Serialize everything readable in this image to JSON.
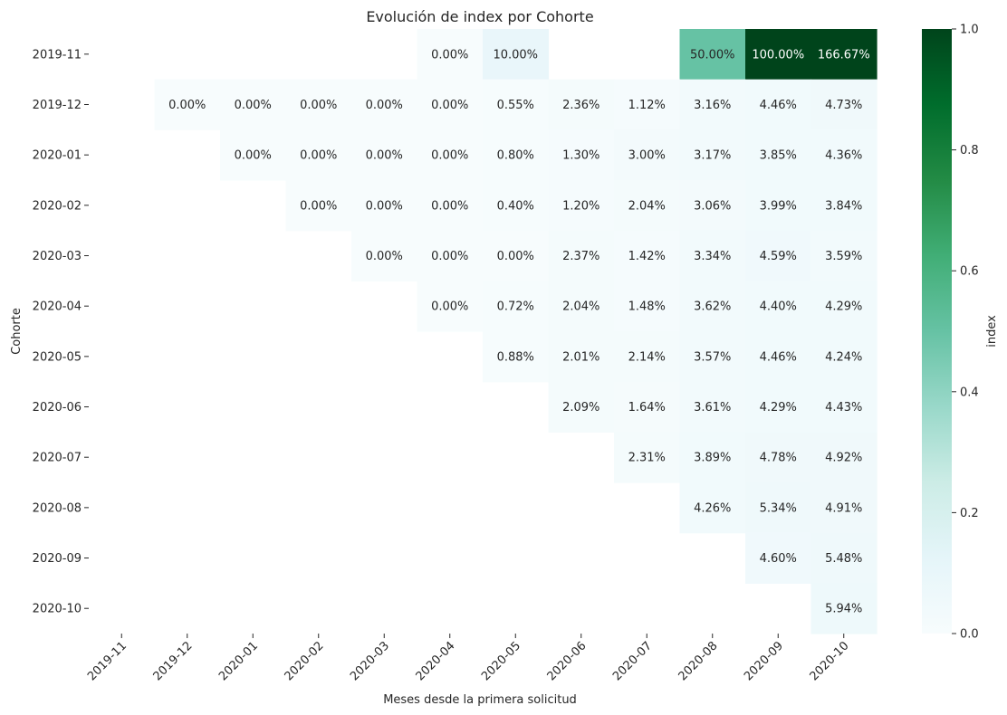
{
  "chart_data": {
    "type": "heatmap",
    "title": "Evolución de index por Cohorte",
    "xlabel": "Meses desde la primera solicitud",
    "ylabel": "Cohorte",
    "colorbar_label": "index",
    "colorbar_range": [
      0.0,
      1.0
    ],
    "colorbar_ticks": [
      "0.0",
      "0.2",
      "0.4",
      "0.6",
      "0.8",
      "1.0"
    ],
    "colormap": "BuGn",
    "x_categories": [
      "2019-11",
      "2019-12",
      "2020-01",
      "2020-02",
      "2020-03",
      "2020-04",
      "2020-05",
      "2020-06",
      "2020-07",
      "2020-08",
      "2020-09",
      "2020-10"
    ],
    "y_categories": [
      "2019-11",
      "2019-12",
      "2020-01",
      "2020-02",
      "2020-03",
      "2020-04",
      "2020-05",
      "2020-06",
      "2020-07",
      "2020-08",
      "2020-09",
      "2020-10"
    ],
    "values": [
      [
        null,
        null,
        null,
        null,
        null,
        0.0,
        0.1,
        null,
        null,
        0.5,
        1.0,
        1.6667
      ],
      [
        null,
        0.0,
        0.0,
        0.0,
        0.0,
        0.0,
        0.0055,
        0.0236,
        0.0112,
        0.0316,
        0.0446,
        0.0473
      ],
      [
        null,
        null,
        0.0,
        0.0,
        0.0,
        0.0,
        0.008,
        0.013,
        0.03,
        0.0317,
        0.0385,
        0.0436
      ],
      [
        null,
        null,
        null,
        0.0,
        0.0,
        0.0,
        0.004,
        0.012,
        0.0204,
        0.0306,
        0.0399,
        0.0384
      ],
      [
        null,
        null,
        null,
        null,
        0.0,
        0.0,
        0.0,
        0.0237,
        0.0142,
        0.0334,
        0.0459,
        0.0359
      ],
      [
        null,
        null,
        null,
        null,
        null,
        0.0,
        0.0072,
        0.0204,
        0.0148,
        0.0362,
        0.044,
        0.0429
      ],
      [
        null,
        null,
        null,
        null,
        null,
        null,
        0.0088,
        0.0201,
        0.0214,
        0.0357,
        0.0446,
        0.0424
      ],
      [
        null,
        null,
        null,
        null,
        null,
        null,
        null,
        0.0209,
        0.0164,
        0.0361,
        0.0429,
        0.0443
      ],
      [
        null,
        null,
        null,
        null,
        null,
        null,
        null,
        null,
        0.0231,
        0.0389,
        0.0478,
        0.0492
      ],
      [
        null,
        null,
        null,
        null,
        null,
        null,
        null,
        null,
        null,
        0.0426,
        0.0534,
        0.0491
      ],
      [
        null,
        null,
        null,
        null,
        null,
        null,
        null,
        null,
        null,
        null,
        0.046,
        0.0548
      ],
      [
        null,
        null,
        null,
        null,
        null,
        null,
        null,
        null,
        null,
        null,
        null,
        0.0594
      ]
    ],
    "labels": [
      [
        null,
        null,
        null,
        null,
        null,
        "0.00%",
        "10.00%",
        null,
        null,
        "50.00%",
        "100.00%",
        "166.67%"
      ],
      [
        null,
        "0.00%",
        "0.00%",
        "0.00%",
        "0.00%",
        "0.00%",
        "0.55%",
        "2.36%",
        "1.12%",
        "3.16%",
        "4.46%",
        "4.73%"
      ],
      [
        null,
        null,
        "0.00%",
        "0.00%",
        "0.00%",
        "0.00%",
        "0.80%",
        "1.30%",
        "3.00%",
        "3.17%",
        "3.85%",
        "4.36%"
      ],
      [
        null,
        null,
        null,
        "0.00%",
        "0.00%",
        "0.00%",
        "0.40%",
        "1.20%",
        "2.04%",
        "3.06%",
        "3.99%",
        "3.84%"
      ],
      [
        null,
        null,
        null,
        null,
        "0.00%",
        "0.00%",
        "0.00%",
        "2.37%",
        "1.42%",
        "3.34%",
        "4.59%",
        "3.59%"
      ],
      [
        null,
        null,
        null,
        null,
        null,
        "0.00%",
        "0.72%",
        "2.04%",
        "1.48%",
        "3.62%",
        "4.40%",
        "4.29%"
      ],
      [
        null,
        null,
        null,
        null,
        null,
        null,
        "0.88%",
        "2.01%",
        "2.14%",
        "3.57%",
        "4.46%",
        "4.24%"
      ],
      [
        null,
        null,
        null,
        null,
        null,
        null,
        null,
        "2.09%",
        "1.64%",
        "3.61%",
        "4.29%",
        "4.43%"
      ],
      [
        null,
        null,
        null,
        null,
        null,
        null,
        null,
        null,
        "2.31%",
        "3.89%",
        "4.78%",
        "4.92%"
      ],
      [
        null,
        null,
        null,
        null,
        null,
        null,
        null,
        null,
        null,
        "4.26%",
        "5.34%",
        "4.91%"
      ],
      [
        null,
        null,
        null,
        null,
        null,
        null,
        null,
        null,
        null,
        null,
        "4.60%",
        "5.48%"
      ],
      [
        null,
        null,
        null,
        null,
        null,
        null,
        null,
        null,
        null,
        null,
        null,
        "5.94%"
      ]
    ]
  }
}
